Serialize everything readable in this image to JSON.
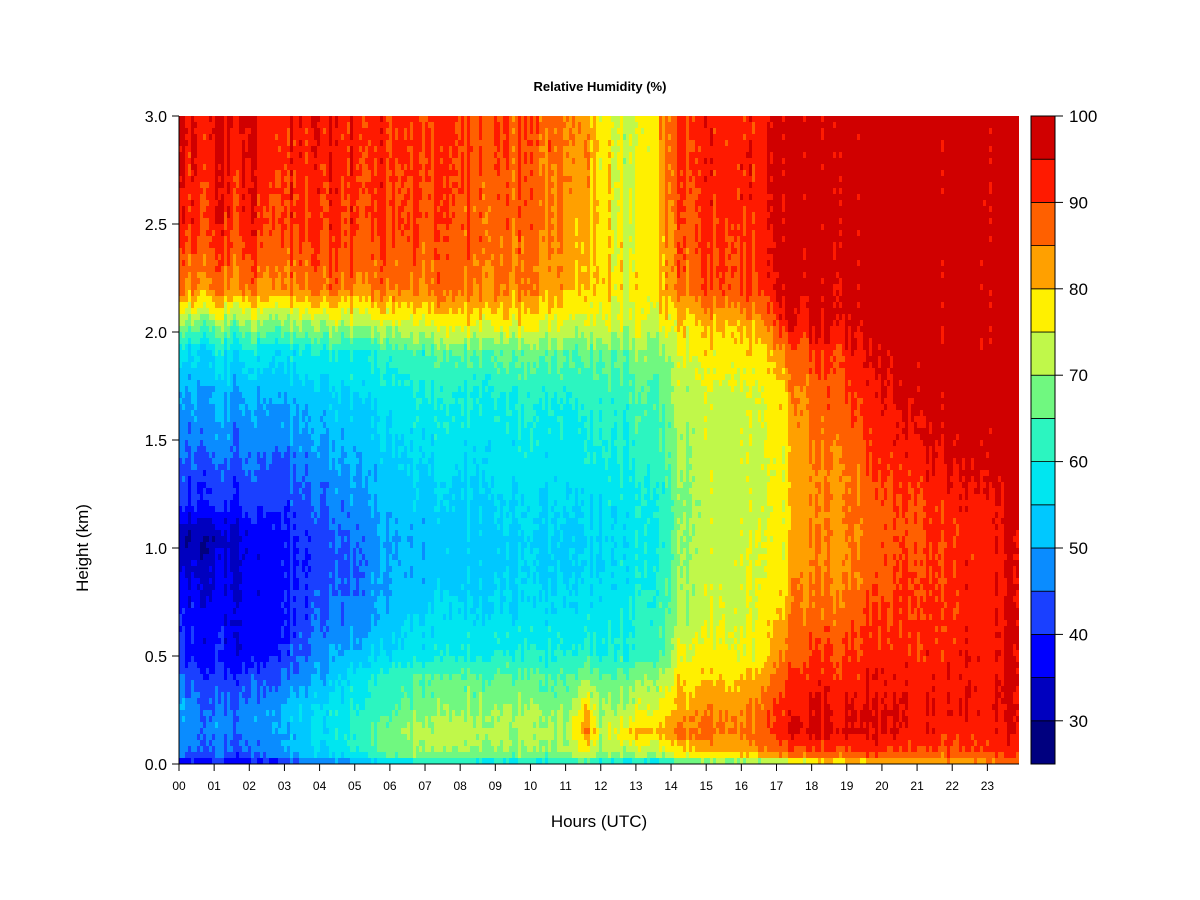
{
  "chart_data": {
    "type": "heatmap",
    "title": "Relative Humidity (%)",
    "xlabel": "Hours (UTC)",
    "ylabel": "Height (km)",
    "x_ticks": [
      "00",
      "01",
      "02",
      "03",
      "04",
      "05",
      "06",
      "07",
      "08",
      "09",
      "10",
      "11",
      "12",
      "13",
      "14",
      "15",
      "16",
      "17",
      "18",
      "19",
      "20",
      "21",
      "22",
      "23"
    ],
    "x_range": [
      0,
      23.9
    ],
    "y_ticks": [
      "0.0",
      "0.5",
      "1.0",
      "1.5",
      "2.0",
      "2.5",
      "3.0"
    ],
    "y_range": [
      0,
      3.0
    ],
    "colorbar": {
      "ticks": [
        "30",
        "40",
        "50",
        "60",
        "70",
        "80",
        "90",
        "100"
      ],
      "range": [
        25,
        100
      ],
      "levels": [
        25,
        30,
        35,
        40,
        45,
        50,
        55,
        60,
        65,
        70,
        75,
        80,
        85,
        90,
        95,
        100
      ],
      "colors": [
        "#00007f",
        "#0000bf",
        "#0000ff",
        "#1a40ff",
        "#0a8cff",
        "#00c8ff",
        "#00e6f0",
        "#2cf5c0",
        "#70f880",
        "#c0f84a",
        "#fff000",
        "#ffa000",
        "#ff6000",
        "#ff1a00",
        "#d00000",
        "#800000"
      ],
      "placement": "right"
    },
    "grid": false,
    "humidity_profiles_percent": {
      "heights_km": [
        0.0,
        0.05,
        0.15,
        0.25,
        0.4,
        0.5,
        0.7,
        0.9,
        1.05,
        1.2,
        1.35,
        1.5,
        1.7,
        1.9,
        2.05,
        2.2,
        2.5,
        3.0
      ],
      "hours": [
        0,
        1,
        2,
        3,
        4,
        5,
        6,
        7,
        8,
        9,
        10,
        11,
        11.6,
        12,
        13,
        13.9,
        14.1,
        15,
        16,
        16.8,
        17.3,
        17.5,
        18,
        19,
        20,
        21,
        22,
        23,
        23.9
      ],
      "values": [
        [
          38,
          45,
          47,
          49,
          45,
          40,
          39,
          34,
          30,
          40,
          43,
          46,
          50,
          55,
          70,
          85,
          92,
          95
        ],
        [
          37,
          45,
          47,
          46,
          40,
          38,
          37,
          34,
          31,
          40,
          43,
          47,
          50,
          56,
          70,
          85,
          92,
          95
        ],
        [
          36,
          44,
          46,
          46,
          42,
          36,
          36,
          36,
          35,
          41,
          44,
          47,
          50,
          57,
          70,
          85,
          92,
          95
        ],
        [
          40,
          50,
          52,
          53,
          47,
          42,
          40,
          40,
          40,
          43,
          45,
          48,
          52,
          58,
          72,
          86,
          92,
          94
        ],
        [
          45,
          55,
          56,
          55,
          50,
          48,
          44,
          42,
          42,
          45,
          47,
          50,
          53,
          59,
          72,
          86,
          91,
          94
        ],
        [
          48,
          60,
          62,
          60,
          58,
          52,
          47,
          45,
          46,
          48,
          50,
          52,
          55,
          60,
          73,
          86,
          91,
          93
        ],
        [
          55,
          68,
          68,
          64,
          62,
          56,
          52,
          50,
          50,
          52,
          53,
          55,
          57,
          62,
          75,
          86,
          90,
          92
        ],
        [
          58,
          70,
          72,
          68,
          65,
          58,
          55,
          52,
          52,
          53,
          55,
          57,
          60,
          64,
          76,
          86,
          89,
          91
        ],
        [
          58,
          70,
          73,
          70,
          66,
          60,
          56,
          53,
          53,
          54,
          56,
          58,
          60,
          66,
          78,
          87,
          89,
          91
        ],
        [
          57,
          70,
          72,
          70,
          66,
          60,
          56,
          54,
          54,
          55,
          57,
          58,
          60,
          66,
          78,
          86,
          88,
          90
        ],
        [
          56,
          69,
          71,
          70,
          65,
          60,
          56,
          54,
          54,
          55,
          57,
          58,
          60,
          66,
          76,
          84,
          86,
          88
        ],
        [
          58,
          70,
          70,
          68,
          64,
          60,
          56,
          54,
          54,
          55,
          57,
          58,
          60,
          66,
          75,
          82,
          84,
          86
        ],
        [
          62,
          76,
          86,
          80,
          70,
          62,
          58,
          55,
          55,
          56,
          58,
          60,
          62,
          66,
          75,
          80,
          82,
          84
        ],
        [
          58,
          70,
          72,
          69,
          65,
          60,
          57,
          55,
          55,
          56,
          58,
          60,
          62,
          66,
          74,
          78,
          78,
          78
        ],
        [
          55,
          72,
          80,
          74,
          68,
          62,
          60,
          58,
          58,
          58,
          60,
          62,
          64,
          68,
          74,
          76,
          74,
          72
        ],
        [
          57,
          74,
          82,
          78,
          72,
          66,
          64,
          62,
          62,
          62,
          63,
          65,
          66,
          70,
          76,
          82,
          84,
          86
        ],
        [
          62,
          78,
          86,
          82,
          78,
          74,
          70,
          69,
          68,
          68,
          69,
          70,
          72,
          74,
          78,
          86,
          88,
          90
        ],
        [
          64,
          80,
          86,
          84,
          78,
          76,
          73,
          72,
          72,
          72,
          72,
          72,
          73,
          76,
          80,
          88,
          90,
          92
        ],
        [
          66,
          82,
          86,
          84,
          80,
          76,
          74,
          74,
          74,
          73,
          73,
          73,
          74,
          78,
          82,
          90,
          92,
          93
        ],
        [
          68,
          84,
          90,
          88,
          84,
          80,
          78,
          76,
          76,
          75,
          75,
          75,
          76,
          80,
          86,
          92,
          94,
          95
        ],
        [
          70,
          88,
          95,
          93,
          90,
          86,
          82,
          78,
          77,
          77,
          77,
          78,
          80,
          86,
          96,
          99,
          99,
          99
        ],
        [
          72,
          90,
          97,
          95,
          93,
          90,
          88,
          86,
          84,
          84,
          84,
          85,
          86,
          90,
          97,
          99,
          99,
          99
        ],
        [
          74,
          90,
          96,
          95,
          92,
          90,
          86,
          84,
          84,
          84,
          84,
          85,
          86,
          90,
          96,
          99,
          99,
          99
        ],
        [
          76,
          90,
          96,
          95,
          93,
          91,
          88,
          85,
          85,
          86,
          86,
          88,
          90,
          93,
          97,
          99,
          99,
          99
        ],
        [
          78,
          90,
          95,
          95,
          93,
          92,
          90,
          88,
          88,
          88,
          90,
          92,
          94,
          96,
          98,
          99,
          99,
          99
        ],
        [
          80,
          89,
          93,
          94,
          93,
          92,
          91,
          90,
          90,
          90,
          92,
          95,
          97,
          98,
          99,
          99,
          99,
          99
        ],
        [
          82,
          88,
          92,
          93,
          93,
          92,
          91,
          91,
          91,
          92,
          95,
          97,
          98,
          99,
          99,
          99,
          99,
          99
        ],
        [
          84,
          90,
          94,
          95,
          95,
          95,
          94,
          94,
          94,
          95,
          97,
          98,
          99,
          99,
          99,
          99,
          99,
          99
        ],
        [
          86,
          92,
          95,
          96,
          97,
          96,
          96,
          96,
          96,
          97,
          98,
          99,
          99,
          99,
          99,
          99,
          99,
          99
        ]
      ]
    }
  }
}
